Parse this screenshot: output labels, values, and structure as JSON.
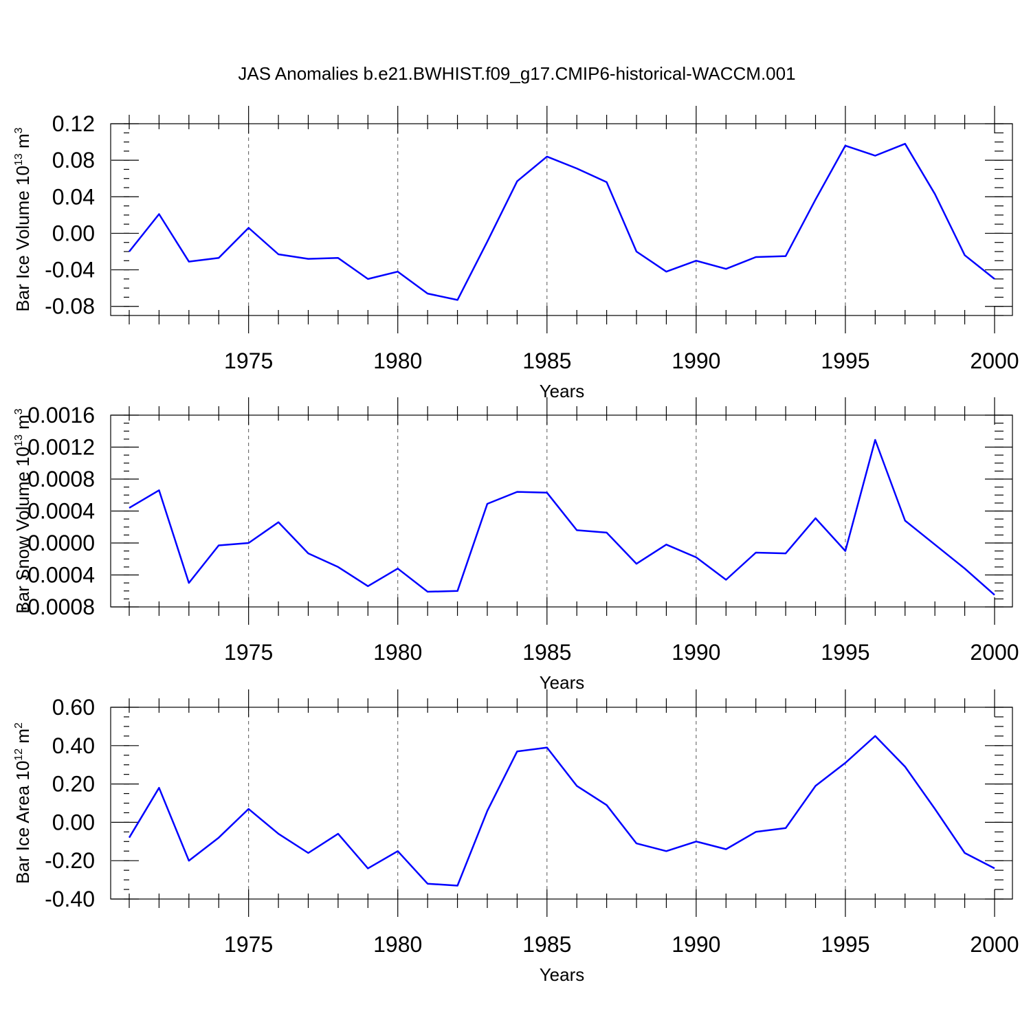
{
  "figure": {
    "title": "JAS Anomalies b.e21.BWHIST.f09_g17.CMIP6-historical-WACCM.001"
  },
  "colors": {
    "line": "#0000ff",
    "frame": "#000000"
  },
  "chart_data": [
    {
      "type": "line",
      "title": "",
      "xlabel": "Years",
      "ylabel": "Bar Ice Volume 10",
      "ylabel_exponent": "13",
      "ylabel_unit": "m",
      "ylabel_unit_exponent": "3",
      "xlim": [
        1971,
        2000
      ],
      "ylim": [
        -0.09,
        0.12
      ],
      "xticks": [
        1975,
        1980,
        1985,
        1990,
        1995,
        2000
      ],
      "xtick_labels": [
        "1975",
        "1980",
        "1985",
        "1990",
        "1995",
        "2000"
      ],
      "yticks": [
        0.12,
        0.08,
        0.04,
        0.0,
        -0.04,
        -0.08
      ],
      "ytick_labels": [
        "0.12",
        "0.08",
        "0.04",
        "0.00",
        "-0.04",
        "-0.08"
      ],
      "yminor_step": 0.01,
      "grid": "dashed vertical at major x ticks",
      "x": [
        1971,
        1972,
        1973,
        1974,
        1975,
        1976,
        1977,
        1978,
        1979,
        1980,
        1981,
        1982,
        1983,
        1984,
        1985,
        1986,
        1987,
        1988,
        1989,
        1990,
        1991,
        1992,
        1993,
        1994,
        1995,
        1996,
        1997,
        1998,
        1999,
        2000
      ],
      "series": [
        {
          "values": [
            -0.02,
            0.021,
            -0.031,
            -0.027,
            0.006,
            -0.023,
            -0.028,
            -0.027,
            -0.05,
            -0.042,
            -0.066,
            -0.073,
            -0.009,
            0.057,
            0.084,
            0.071,
            0.056,
            -0.02,
            -0.042,
            -0.03,
            -0.039,
            -0.026,
            -0.025,
            0.037,
            0.096,
            0.085,
            0.098,
            0.043,
            -0.024,
            -0.05
          ]
        }
      ]
    },
    {
      "type": "line",
      "title": "",
      "xlabel": "Years",
      "ylabel": "Bar Snow Volume 10",
      "ylabel_exponent": "13",
      "ylabel_unit": "m",
      "ylabel_unit_exponent": "3",
      "xlim": [
        1971,
        2000
      ],
      "ylim": [
        -0.0008,
        0.0016
      ],
      "xticks": [
        1975,
        1980,
        1985,
        1990,
        1995,
        2000
      ],
      "xtick_labels": [
        "1975",
        "1980",
        "1985",
        "1990",
        "1995",
        "2000"
      ],
      "yticks": [
        0.0016,
        0.0012,
        0.0008,
        0.0004,
        0.0,
        -0.0004,
        -0.0008
      ],
      "ytick_labels": [
        "0.0016",
        "0.0012",
        "0.0008",
        "0.0004",
        "0.0000",
        "-0.0004",
        "-0.0008"
      ],
      "yminor_step": 0.0001,
      "grid": "dashed vertical at major x ticks",
      "x": [
        1971,
        1972,
        1973,
        1974,
        1975,
        1976,
        1977,
        1978,
        1979,
        1980,
        1981,
        1982,
        1983,
        1984,
        1985,
        1986,
        1987,
        1988,
        1989,
        1990,
        1991,
        1992,
        1993,
        1994,
        1995,
        1996,
        1997,
        1998,
        1999,
        2000
      ],
      "series": [
        {
          "values": [
            0.00044,
            0.00066,
            -0.0005,
            -3e-05,
            0.0,
            0.00026,
            -0.00013,
            -0.0003,
            -0.00054,
            -0.00032,
            -0.00061,
            -0.0006,
            0.00049,
            0.00064,
            0.00063,
            0.00016,
            0.00013,
            -0.00026,
            -2e-05,
            -0.00018,
            -0.00046,
            -0.00012,
            -0.00013,
            0.00031,
            -0.0001,
            0.00129,
            0.00028,
            -2e-05,
            -0.00032,
            -0.00065
          ]
        }
      ]
    },
    {
      "type": "line",
      "title": "",
      "xlabel": "Years",
      "ylabel": "Bar Ice Area 10",
      "ylabel_exponent": "12",
      "ylabel_unit": "m",
      "ylabel_unit_exponent": "2",
      "xlim": [
        1971,
        2000
      ],
      "ylim": [
        -0.4,
        0.6
      ],
      "xticks": [
        1975,
        1980,
        1985,
        1990,
        1995,
        2000
      ],
      "xtick_labels": [
        "1975",
        "1980",
        "1985",
        "1990",
        "1995",
        "2000"
      ],
      "yticks": [
        0.6,
        0.4,
        0.2,
        0.0,
        -0.2,
        -0.4
      ],
      "ytick_labels": [
        "0.60",
        "0.40",
        "0.20",
        "0.00",
        "-0.20",
        "-0.40"
      ],
      "yminor_step": 0.05,
      "grid": "dashed vertical at major x ticks",
      "x": [
        1971,
        1972,
        1973,
        1974,
        1975,
        1976,
        1977,
        1978,
        1979,
        1980,
        1981,
        1982,
        1983,
        1984,
        1985,
        1986,
        1987,
        1988,
        1989,
        1990,
        1991,
        1992,
        1993,
        1994,
        1995,
        1996,
        1997,
        1998,
        1999,
        2000
      ],
      "series": [
        {
          "values": [
            -0.08,
            0.18,
            -0.2,
            -0.08,
            0.07,
            -0.06,
            -0.16,
            -0.06,
            -0.24,
            -0.15,
            -0.32,
            -0.33,
            0.06,
            0.37,
            0.39,
            0.19,
            0.09,
            -0.11,
            -0.15,
            -0.1,
            -0.14,
            -0.05,
            -0.03,
            0.19,
            0.31,
            0.45,
            0.29,
            0.07,
            -0.16,
            -0.24
          ]
        }
      ]
    }
  ]
}
